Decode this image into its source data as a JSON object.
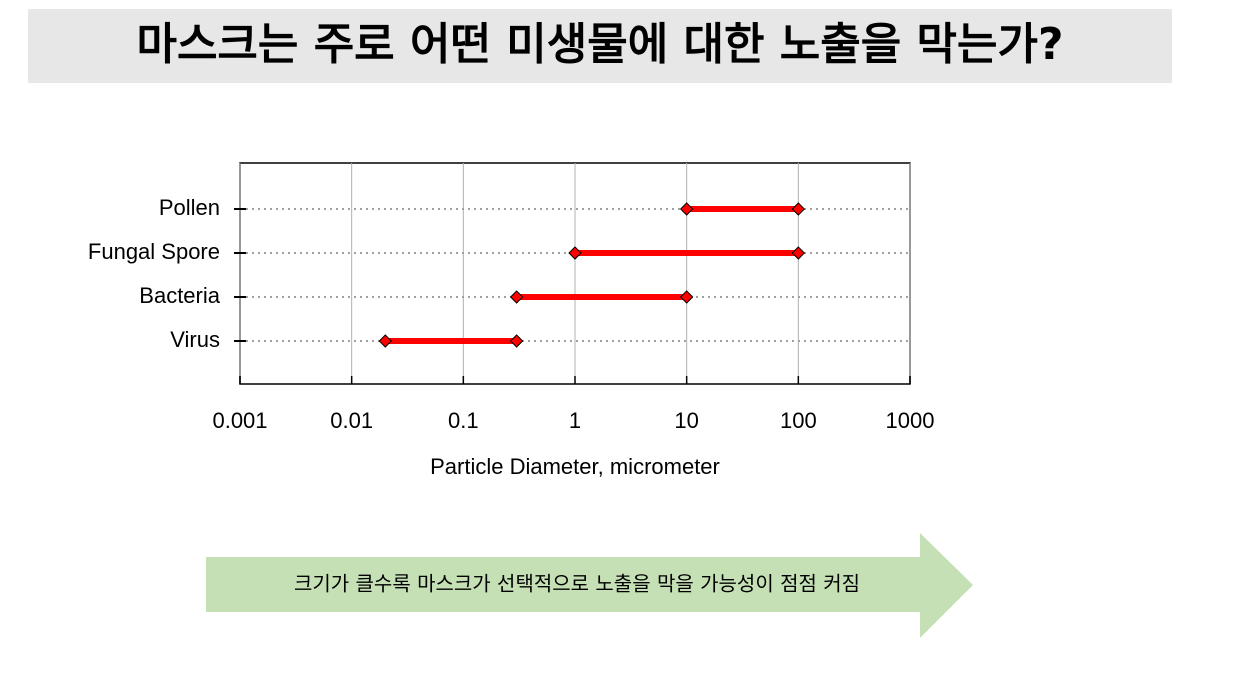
{
  "title": "마스크는 주로 어떤 미생물에 대한 노출을 막는가?",
  "chart_data": {
    "type": "range",
    "categories": [
      "Pollen",
      "Fungal Spore",
      "Bacteria",
      "Virus"
    ],
    "min_values": [
      10,
      1,
      0.3,
      0.02
    ],
    "max_values": [
      100,
      100,
      10,
      0.3
    ],
    "color": "#ff0000",
    "x_label": "Particle Diameter, micrometer",
    "xlim": [
      0.001,
      1000
    ],
    "xticks": [
      0.001,
      0.01,
      0.1,
      1,
      10,
      100,
      1000
    ],
    "log_x": true,
    "grid": true
  },
  "callout": "크기가 클수록 마스크가 선택적으로 노출을 막을 가능성이 점점 커짐"
}
